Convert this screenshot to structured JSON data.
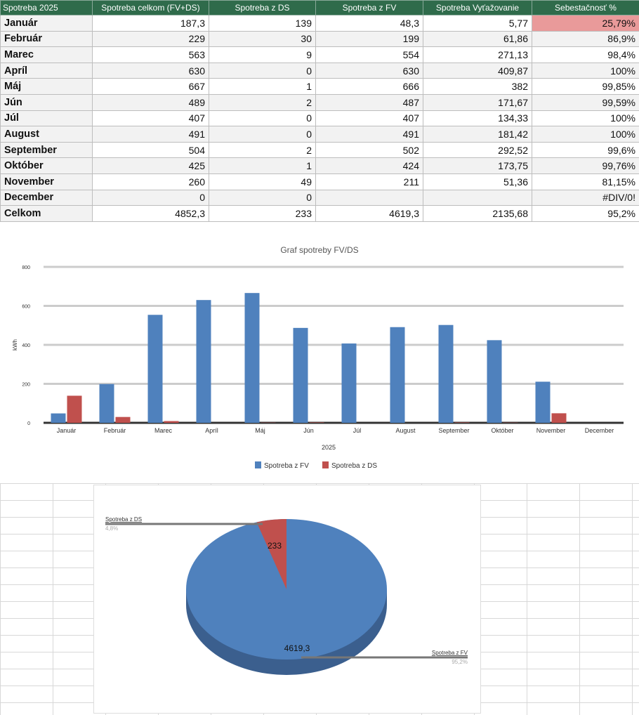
{
  "table": {
    "headers": [
      "Spotreba 2025",
      "Spotreba celkom (FV+DS)",
      "Spotreba z DS",
      "Spotreba z FV",
      "Spotreba Vyťažovanie",
      "Sebestačnosť  %"
    ],
    "rows": [
      [
        "Január",
        "187,3",
        "139",
        "48,3",
        "5,77",
        "25,79%"
      ],
      [
        "Február",
        "229",
        "30",
        "199",
        "61,86",
        "86,9%"
      ],
      [
        "Marec",
        "563",
        "9",
        "554",
        "271,13",
        "98,4%"
      ],
      [
        "Apríl",
        "630",
        "0",
        "630",
        "409,87",
        "100%"
      ],
      [
        "Máj",
        "667",
        "1",
        "666",
        "382",
        "99,85%"
      ],
      [
        "Jún",
        "489",
        "2",
        "487",
        "171,67",
        "99,59%"
      ],
      [
        "Júl",
        "407",
        "0",
        "407",
        "134,33",
        "100%"
      ],
      [
        "August",
        "491",
        "0",
        "491",
        "181,42",
        "100%"
      ],
      [
        "September",
        "504",
        "2",
        "502",
        "292,52",
        "99,6%"
      ],
      [
        "Október",
        "425",
        "1",
        "424",
        "173,75",
        "99,76%"
      ],
      [
        "November",
        "260",
        "49",
        "211",
        "51,36",
        "81,15%"
      ],
      [
        "December",
        "0",
        "0",
        "",
        "",
        "#DIV/0!"
      ],
      [
        "Celkom",
        "4852,3",
        "233",
        "4619,3",
        "2135,68",
        "95,2%"
      ]
    ]
  },
  "chart_data": [
    {
      "type": "bar",
      "title": "Graf spotreby FV/DS",
      "xlabel": "2025",
      "ylabel": "kWh",
      "ylim": [
        0,
        800
      ],
      "yticks": [
        0,
        200,
        400,
        600,
        800
      ],
      "categories": [
        "Január",
        "Február",
        "Marec",
        "Apríl",
        "Máj",
        "Jún",
        "Júl",
        "August",
        "September",
        "Október",
        "November",
        "December"
      ],
      "series": [
        {
          "name": "Spotreba z FV",
          "color": "#4f81bd",
          "values": [
            48.3,
            199,
            554,
            630,
            666,
            487,
            407,
            491,
            502,
            424,
            211,
            0
          ]
        },
        {
          "name": "Spotreba z DS",
          "color": "#c0504d",
          "values": [
            139,
            30,
            9,
            0,
            1,
            2,
            0,
            0,
            2,
            1,
            49,
            0
          ]
        }
      ],
      "legend": "bottom",
      "grid": true
    },
    {
      "type": "pie",
      "slices": [
        {
          "name": "Spotreba z DS",
          "value": 233,
          "value_label": "233",
          "percent": "4,8%",
          "color": "#c0504d"
        },
        {
          "name": "Spotreba z FV",
          "value": 4619.3,
          "value_label": "4619,3",
          "percent": "95,2%",
          "color": "#4f81bd"
        }
      ]
    }
  ]
}
